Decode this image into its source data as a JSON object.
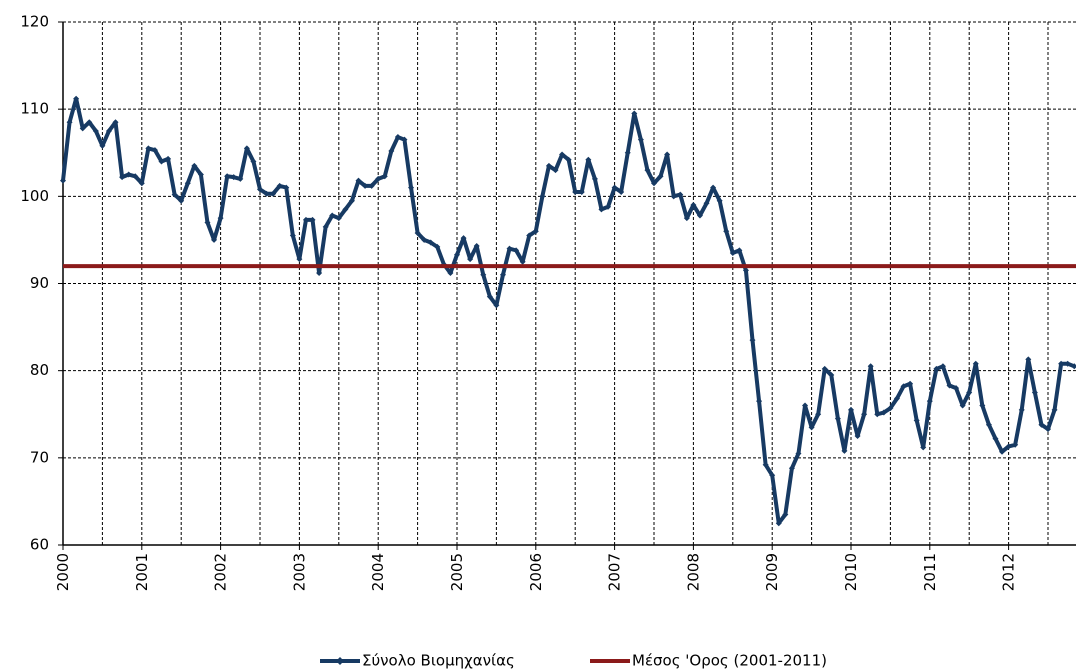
{
  "chart_data": {
    "type": "line",
    "categories": [
      "2000",
      null,
      null,
      null,
      null,
      null,
      null,
      null,
      null,
      null,
      null,
      null,
      "2001",
      null,
      null,
      null,
      null,
      null,
      null,
      null,
      null,
      null,
      null,
      null,
      "2002",
      null,
      null,
      null,
      null,
      null,
      null,
      null,
      null,
      null,
      null,
      null,
      "2003",
      null,
      null,
      null,
      null,
      null,
      null,
      null,
      null,
      null,
      null,
      null,
      "2004",
      null,
      null,
      null,
      null,
      null,
      null,
      null,
      null,
      null,
      null,
      null,
      "2005",
      null,
      null,
      null,
      null,
      null,
      null,
      null,
      null,
      null,
      null,
      null,
      "2006",
      null,
      null,
      null,
      null,
      null,
      null,
      null,
      null,
      null,
      null,
      null,
      "2007",
      null,
      null,
      null,
      null,
      null,
      null,
      null,
      null,
      null,
      null,
      null,
      "2008",
      null,
      null,
      null,
      null,
      null,
      null,
      null,
      null,
      null,
      null,
      null,
      "2009",
      null,
      null,
      null,
      null,
      null,
      null,
      null,
      null,
      null,
      null,
      null,
      "2010",
      null,
      null,
      null,
      null,
      null,
      null,
      null,
      null,
      null,
      null,
      null,
      "2011",
      null,
      null,
      null,
      null,
      null,
      null,
      null,
      null,
      null,
      null,
      null,
      "2012",
      null,
      null,
      null,
      null,
      null,
      null,
      null,
      null,
      null,
      null
    ],
    "series": [
      {
        "name": "Σύνολο Βιομηχανίας",
        "color": "#173a63",
        "values": [
          101.8,
          108.5,
          111.2,
          107.8,
          108.5,
          107.5,
          105.8,
          107.5,
          108.5,
          102.2,
          102.5,
          102.3,
          101.5,
          105.5,
          105.3,
          104.0,
          104.3,
          100.2,
          99.5,
          101.5,
          103.5,
          102.5,
          97.0,
          95.0,
          97.5,
          102.3,
          102.2,
          102.0,
          105.5,
          104.0,
          100.8,
          100.3,
          100.3,
          101.2,
          101.0,
          95.5,
          92.8,
          97.3,
          97.3,
          91.2,
          96.5,
          97.8,
          97.5,
          98.5,
          99.5,
          101.8,
          101.2,
          101.2,
          102.0,
          102.3,
          105.2,
          106.8,
          106.5,
          101.0,
          95.8,
          95.0,
          94.7,
          94.2,
          92.2,
          91.2,
          93.3,
          95.2,
          92.8,
          94.3,
          91.0,
          88.5,
          87.5,
          91.0,
          94.0,
          93.8,
          92.5,
          95.5,
          96.0,
          100.0,
          103.5,
          103.0,
          104.8,
          104.2,
          100.5,
          100.5,
          104.2,
          102.0,
          98.5,
          98.8,
          101.0,
          100.5,
          105.0,
          109.5,
          106.5,
          103.0,
          101.5,
          102.3,
          104.8,
          100.0,
          100.2,
          97.5,
          99.0,
          97.8,
          99.2,
          101.0,
          99.5,
          96.0,
          93.5,
          93.8,
          91.5,
          83.5,
          76.5,
          69.2,
          68.0,
          62.5,
          63.5,
          68.8,
          70.5,
          76.0,
          73.5,
          75.0,
          80.2,
          79.5,
          74.5,
          70.8,
          75.5,
          72.5,
          75.0,
          80.5,
          75.0,
          75.2,
          75.7,
          76.8,
          78.2,
          78.5,
          74.3,
          71.2,
          76.5,
          80.2,
          80.5,
          78.3,
          78.0,
          76.0,
          77.5,
          80.8,
          76.0,
          73.8,
          72.2,
          70.7,
          71.3,
          71.5,
          75.5,
          81.3,
          77.5,
          73.8,
          73.3,
          75.5,
          80.8,
          80.8,
          80.5
        ]
      },
      {
        "name": "Μέσος 'Ορος (2001-2011)",
        "color": "#8b1a1a",
        "value": 92
      }
    ],
    "ylim": [
      60,
      120
    ],
    "yticks": [
      60,
      70,
      80,
      90,
      100,
      110,
      120
    ],
    "grid": true,
    "legend": "bottom"
  }
}
